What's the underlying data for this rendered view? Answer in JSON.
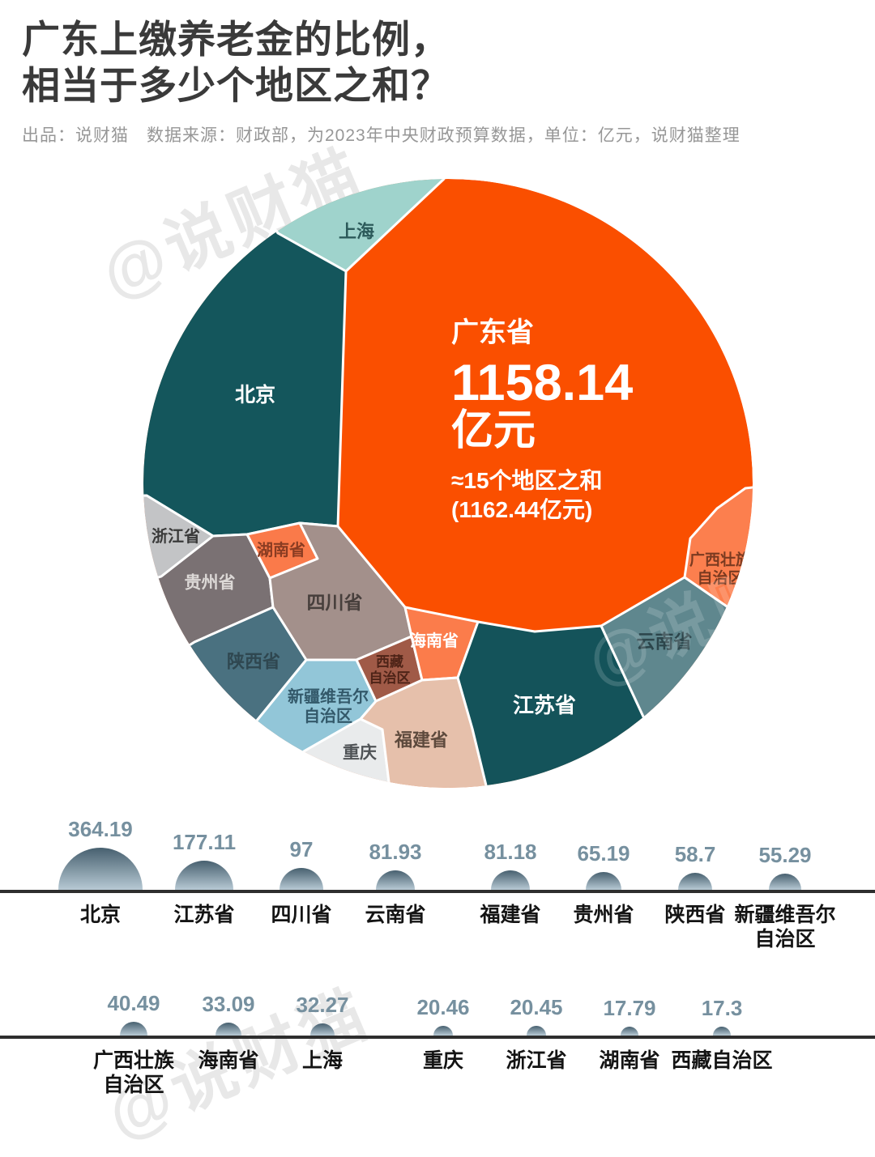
{
  "title": {
    "line1": "广东上缴养老金的比例，",
    "line2": "相当于多少个地区之和？"
  },
  "subtitle": "出品：说财猫　数据来源：财政部，为2023年中央财政预算数据，单位：亿元，说财猫整理",
  "watermark": "@说财猫",
  "colors": {
    "accent": "#FA4F00",
    "baseline": "#2e2e2e",
    "value_text": "#76909f",
    "dome_top": "#47606f",
    "dome_bottom": "#b7c9d4"
  },
  "chart_data": {
    "type": "voronoi_circle_treemap_with_semicircle_bars",
    "unit": "亿元",
    "main": {
      "name": "广东省",
      "value": 1158.14,
      "unit_label": "亿元",
      "note": "≈15个地区之和",
      "note_detail": "(1162.44亿元)",
      "color": "#FA4F00",
      "text_color": "#ffffff"
    },
    "regions": [
      {
        "id": "beijing",
        "name": "北京",
        "value": 364.19,
        "color": "#14565C",
        "label_color": "#ffffff"
      },
      {
        "id": "jiangsu",
        "name": "江苏省",
        "value": 177.11,
        "color": "#14535A",
        "label_color": "#ffffff"
      },
      {
        "id": "sichuan",
        "name": "四川省",
        "value": 97,
        "color": "#A3908B",
        "label_color": "#473F3C"
      },
      {
        "id": "yunnan",
        "name": "云南省",
        "value": 81.93,
        "color": "#5F878E",
        "label_color": "#2C454B"
      },
      {
        "id": "fujian",
        "name": "福建省",
        "value": 81.18,
        "color": "#E6C0AB",
        "label_color": "#5E4A3D"
      },
      {
        "id": "guizhou",
        "name": "贵州省",
        "value": 65.19,
        "color": "#7A7173",
        "label_color": "#DCD8D6"
      },
      {
        "id": "shaanxi",
        "name": "陕西省",
        "value": 58.7,
        "color": "#4A7180",
        "label_color": "#2F4750"
      },
      {
        "id": "xinjiang",
        "name": "新疆维吾尔自治区",
        "value": 55.29,
        "color": "#92C6D8",
        "label_color": "#33596A",
        "wrap_cell": [
          "新疆维吾尔",
          "自治区"
        ],
        "wrap_row": [
          "新疆维吾尔",
          "自治区"
        ]
      },
      {
        "id": "guangxi",
        "name": "广西壮族自治区",
        "value": 40.49,
        "color": "#FC7F4E",
        "label_color": "#7A3A20",
        "wrap_cell": [
          "广西壮族",
          "自治区"
        ],
        "wrap_row": [
          "广西壮族",
          "自治区"
        ]
      },
      {
        "id": "hainan",
        "name": "海南省",
        "value": 33.09,
        "color": "#FB7C4B",
        "label_color": "#ffffff"
      },
      {
        "id": "shanghai",
        "name": "上海",
        "value": 32.27,
        "color": "#9FD3CC",
        "label_color": "#2C5A5A"
      },
      {
        "id": "chongqing",
        "name": "重庆",
        "value": 20.46,
        "color": "#E9EBEC",
        "label_color": "#4F5356"
      },
      {
        "id": "zhejiang",
        "name": "浙江省",
        "value": 20.45,
        "color": "#C3C4C6",
        "label_color": "#3A3A3A"
      },
      {
        "id": "hunan",
        "name": "湖南省",
        "value": 17.79,
        "color": "#FA7A4A",
        "label_color": "#8A3C22"
      },
      {
        "id": "xizang",
        "name": "西藏自治区",
        "value": 17.3,
        "color": "#A05A47",
        "label_color": "#4D2317",
        "wrap_cell": [
          "西藏",
          "自治区"
        ]
      }
    ],
    "row1_ids": [
      "beijing",
      "jiangsu",
      "sichuan",
      "yunnan",
      "fujian",
      "guizhou",
      "shaanxi",
      "xinjiang"
    ],
    "row2_ids": [
      "guangxi",
      "hainan",
      "shanghai",
      "chongqing",
      "zhejiang",
      "hunan",
      "xizang"
    ]
  }
}
